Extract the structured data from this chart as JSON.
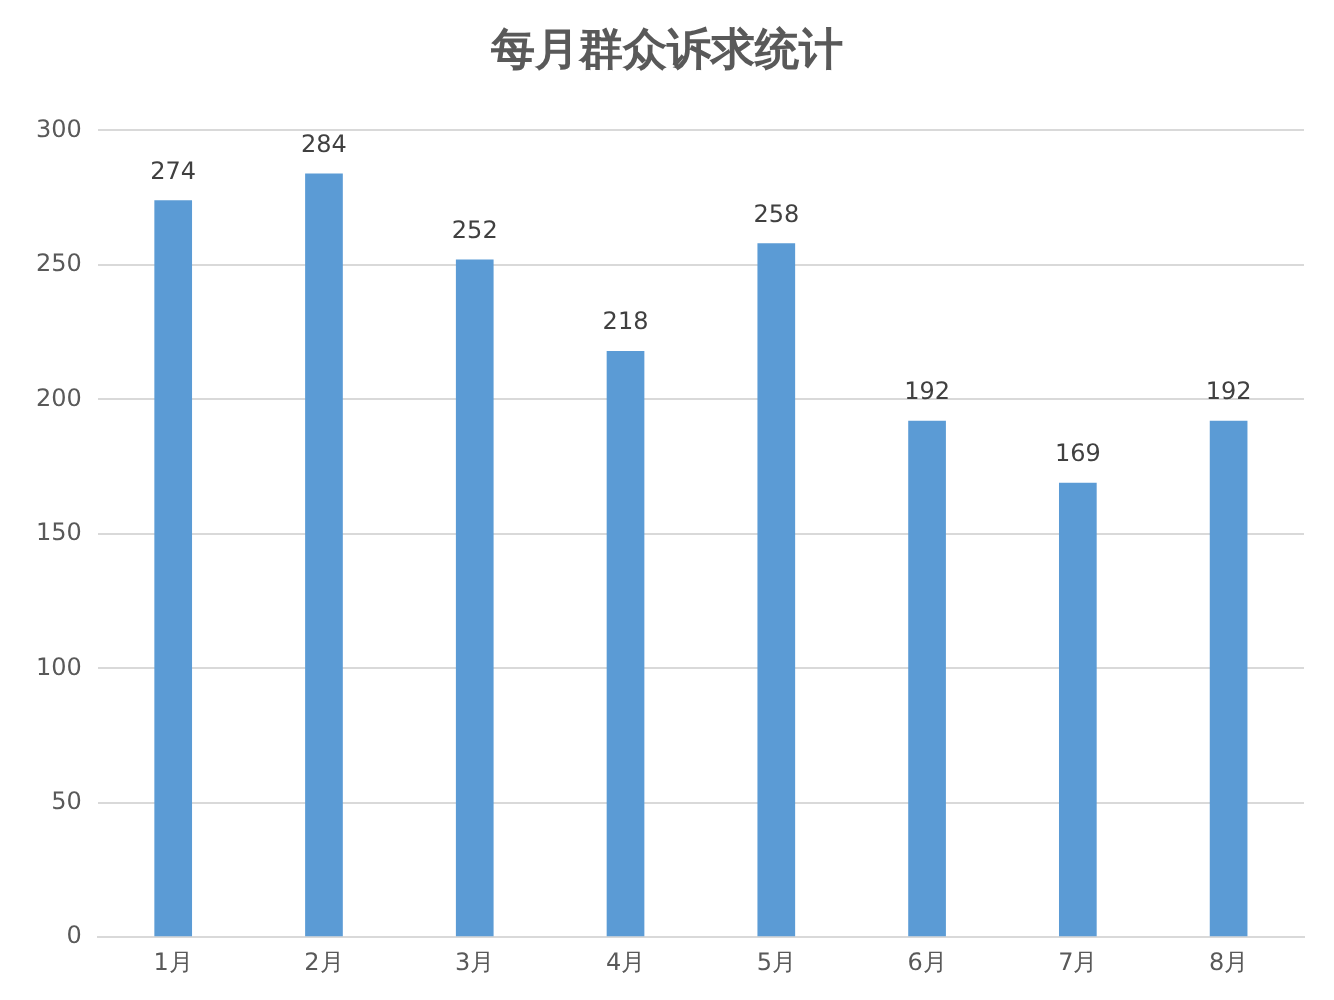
{
  "chart_data": {
    "type": "bar",
    "title": "每月群众诉求统计",
    "categories": [
      "1月",
      "2月",
      "3月",
      "4月",
      "5月",
      "6月",
      "7月",
      "8月"
    ],
    "values": [
      274,
      284,
      252,
      218,
      258,
      192,
      169,
      192
    ],
    "color": "#5b9bd5",
    "ylim": [
      0,
      300
    ],
    "yticks": [
      0,
      50,
      100,
      150,
      200,
      250,
      300
    ],
    "grid": "y",
    "legend": false,
    "data_labels": true
  }
}
